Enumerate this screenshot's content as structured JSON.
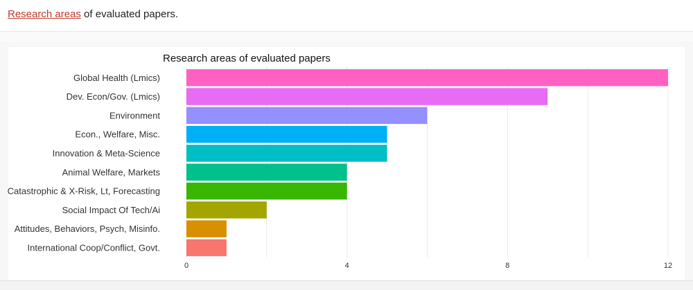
{
  "caption": {
    "link_text": "Research areas",
    "rest_text": " of evaluated papers."
  },
  "colors": {
    "link": "#c0392b"
  },
  "chart_data": {
    "type": "bar",
    "orientation": "horizontal",
    "title": "Research areas of evaluated papers",
    "xlabel": "",
    "ylabel": "",
    "xlim": [
      0,
      12
    ],
    "xticks": [
      0,
      4,
      8,
      12
    ],
    "grid": true,
    "categories": [
      "Global Health (Lmics)",
      "Dev. Econ/Gov. (Lmics)",
      "Environment",
      "Econ., Welfare, Misc.",
      "Innovation & Meta-Science",
      "Animal Welfare, Markets",
      "Catastrophic & X-Risk, Lt, Forecasting",
      "Social Impact Of Tech/Ai",
      "Attitudes, Behaviors, Psych, Misinfo.",
      "International Coop/Conflict, Govt."
    ],
    "values": [
      12,
      9,
      6,
      5,
      5,
      4,
      4,
      2,
      1,
      1
    ],
    "bar_colors": [
      "#ff61c3",
      "#e76bf3",
      "#9590ff",
      "#00b0f6",
      "#00bfc4",
      "#00c08b",
      "#39b600",
      "#a3a500",
      "#d89000",
      "#f8766d"
    ]
  }
}
